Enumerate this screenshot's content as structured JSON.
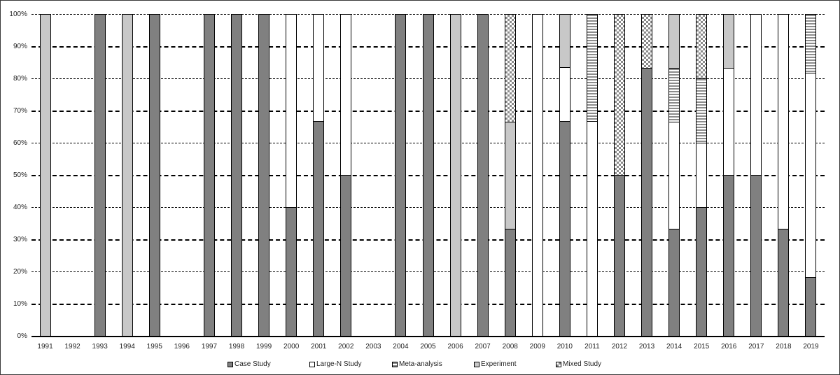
{
  "chart_data": {
    "type": "bar",
    "stacked": true,
    "percent": true,
    "title": "",
    "xlabel": "",
    "ylabel": "",
    "ylim": [
      0,
      100
    ],
    "yticks": [
      "0%",
      "10%",
      "20%",
      "30%",
      "40%",
      "50%",
      "60%",
      "70%",
      "80%",
      "90%",
      "100%"
    ],
    "grid": true,
    "legend_position": "bottom",
    "categories": [
      "1991",
      "1992",
      "1993",
      "1994",
      "1995",
      "1996",
      "1997",
      "1998",
      "1999",
      "2000",
      "2001",
      "2002",
      "2003",
      "2004",
      "2005",
      "2006",
      "2007",
      "2008",
      "2009",
      "2010",
      "2011",
      "2012",
      "2013",
      "2014",
      "2015",
      "2016",
      "2017",
      "2018",
      "2019"
    ],
    "series": [
      {
        "name": "Case Study",
        "pattern": "solid-dark-gray",
        "color": "#808080",
        "values": [
          0,
          0,
          100,
          0,
          100,
          0,
          100,
          100,
          100,
          40,
          66.7,
          50,
          0,
          100,
          100,
          0,
          100,
          33.3,
          0,
          66.7,
          0,
          50,
          83.3,
          33.3,
          40,
          50,
          50,
          33.3,
          18.2
        ]
      },
      {
        "name": "Large-N Study",
        "pattern": "solid-white",
        "color": "#ffffff",
        "values": [
          0,
          0,
          0,
          0,
          0,
          0,
          0,
          0,
          0,
          60,
          33.3,
          50,
          0,
          0,
          0,
          0,
          0,
          0,
          100,
          16.7,
          66.7,
          0,
          0,
          33.3,
          20,
          33.3,
          50,
          66.7,
          63.6
        ]
      },
      {
        "name": "Meta-analysis",
        "pattern": "horizontal-stripes",
        "color": "#8c8c8c",
        "values": [
          0,
          0,
          0,
          0,
          0,
          0,
          0,
          0,
          0,
          0,
          0,
          0,
          0,
          0,
          0,
          0,
          0,
          0,
          0,
          0,
          33.3,
          0,
          0,
          16.7,
          20,
          0,
          0,
          0,
          18.2
        ]
      },
      {
        "name": "Experiment",
        "pattern": "solid-light-gray",
        "color": "#c8c8c8",
        "values": [
          100,
          0,
          0,
          100,
          0,
          0,
          0,
          0,
          0,
          0,
          0,
          0,
          0,
          0,
          0,
          100,
          0,
          33.3,
          0,
          16.7,
          0,
          0,
          0,
          16.7,
          0,
          16.7,
          0,
          0,
          0
        ]
      },
      {
        "name": "Mixed Study",
        "pattern": "checkered",
        "color": "#8c8c8c",
        "values": [
          0,
          0,
          0,
          0,
          0,
          0,
          0,
          0,
          0,
          0,
          0,
          0,
          0,
          0,
          0,
          0,
          0,
          33.3,
          0,
          0,
          0,
          50,
          16.7,
          0,
          20,
          0,
          0,
          0,
          0
        ]
      }
    ]
  },
  "legend": {
    "items": [
      {
        "label": "Case Study",
        "cls": "p-case"
      },
      {
        "label": "Large-N Study",
        "cls": "p-largen"
      },
      {
        "label": "Meta-analysis",
        "cls": "p-meta"
      },
      {
        "label": "Experiment",
        "cls": "p-exp"
      },
      {
        "label": "Mixed Study",
        "cls": "p-mixed"
      }
    ]
  }
}
